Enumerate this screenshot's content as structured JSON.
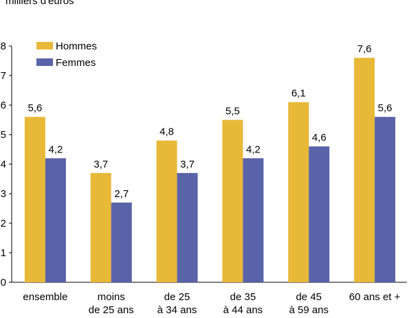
{
  "chart_data": {
    "type": "bar",
    "title": "",
    "unit_label": "milliers d'euros",
    "xlabel": "",
    "ylabel": "",
    "ylim": [
      0,
      8
    ],
    "yticks": [
      0,
      1,
      2,
      3,
      4,
      5,
      6,
      7,
      8
    ],
    "grid": false,
    "legend_position": "top-left",
    "categories": [
      [
        "ensemble"
      ],
      [
        "moins",
        "de 25 ans"
      ],
      [
        "de 25",
        "à 34 ans"
      ],
      [
        "de 35",
        "à 44 ans"
      ],
      [
        "de 45",
        "à 59 ans"
      ],
      [
        "60 ans et +"
      ]
    ],
    "series": [
      {
        "name": "Hommes",
        "color": "#E8B838",
        "values": [
          5.6,
          3.7,
          4.8,
          5.5,
          6.1,
          7.6
        ],
        "labels": [
          "5,6",
          "3,7",
          "4,8",
          "5,5",
          "6,1",
          "7,6"
        ]
      },
      {
        "name": "Femmes",
        "color": "#5A62A8",
        "values": [
          4.2,
          2.7,
          3.7,
          4.2,
          4.6,
          5.6
        ],
        "labels": [
          "4,2",
          "2,7",
          "3,7",
          "4,2",
          "4,6",
          "5,6"
        ]
      }
    ]
  }
}
